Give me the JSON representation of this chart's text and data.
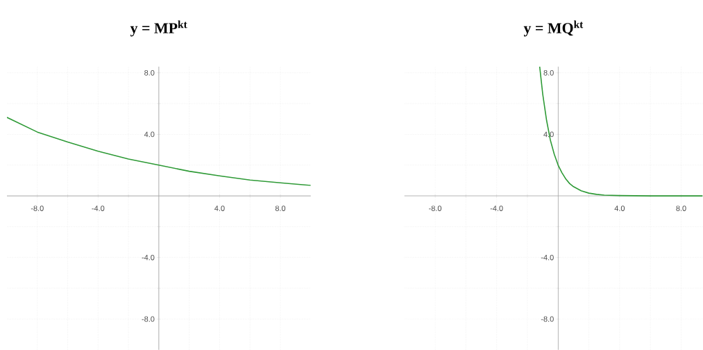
{
  "chart_data": [
    {
      "type": "line",
      "title": "y = MP$^{kt}$",
      "xlim": [
        -10,
        10
      ],
      "ylim": [
        -10,
        8.4
      ],
      "grid": true,
      "xticks": [
        {
          "value": -8,
          "label": "-8.0"
        },
        {
          "value": -6,
          "label": null
        },
        {
          "value": -4,
          "label": "-4.0"
        },
        {
          "value": -2,
          "label": null
        },
        {
          "value": 2,
          "label": null
        },
        {
          "value": 4,
          "label": "4.0"
        },
        {
          "value": 6,
          "label": null
        },
        {
          "value": 8,
          "label": "8.0"
        }
      ],
      "yticks": [
        {
          "value": -8,
          "label": "-8.0"
        },
        {
          "value": -6,
          "label": null
        },
        {
          "value": -4,
          "label": "-4.0"
        },
        {
          "value": -2,
          "label": null
        },
        {
          "value": 2,
          "label": null
        },
        {
          "value": 4,
          "label": "4.0"
        },
        {
          "value": 6,
          "label": null
        },
        {
          "value": 8,
          "label": "8.0"
        }
      ],
      "series": [
        {
          "color": "#2e9a36",
          "x": [
            -10,
            -8,
            -6,
            -4,
            -2,
            0,
            2,
            4,
            6,
            8,
            10
          ],
          "values": [
            5.1,
            4.15,
            3.5,
            2.9,
            2.4,
            2.0,
            1.6,
            1.3,
            1.03,
            0.85,
            0.68
          ]
        }
      ]
    },
    {
      "type": "line",
      "title": "y = MQ$^{kt}$",
      "xlim": [
        -10,
        9.4
      ],
      "ylim": [
        -10,
        8.4
      ],
      "grid": true,
      "xticks": [
        {
          "value": -8,
          "label": "-8.0"
        },
        {
          "value": -6,
          "label": null
        },
        {
          "value": -4,
          "label": "-4.0"
        },
        {
          "value": -2,
          "label": null
        },
        {
          "value": 2,
          "label": null
        },
        {
          "value": 4,
          "label": "4.0"
        },
        {
          "value": 6,
          "label": null
        },
        {
          "value": 8,
          "label": "8.0"
        }
      ],
      "yticks": [
        {
          "value": -8,
          "label": "-8.0"
        },
        {
          "value": -6,
          "label": null
        },
        {
          "value": -4,
          "label": "-4.0"
        },
        {
          "value": -2,
          "label": null
        },
        {
          "value": 2,
          "label": null
        },
        {
          "value": 4,
          "label": "4.0"
        },
        {
          "value": 6,
          "label": null
        },
        {
          "value": 8,
          "label": "8.0"
        }
      ],
      "series": [
        {
          "color": "#2e9a36",
          "x": [
            -1.2,
            -1,
            -0.75,
            -0.5,
            -0.25,
            0,
            0.25,
            0.5,
            0.75,
            1,
            1.5,
            2,
            2.5,
            3,
            4,
            6,
            9.4
          ],
          "values": [
            8.4,
            6.6,
            4.9,
            3.6,
            2.7,
            2.0,
            1.5,
            1.1,
            0.8,
            0.6,
            0.33,
            0.18,
            0.1,
            0.05,
            0.02,
            0,
            0
          ]
        }
      ]
    }
  ]
}
